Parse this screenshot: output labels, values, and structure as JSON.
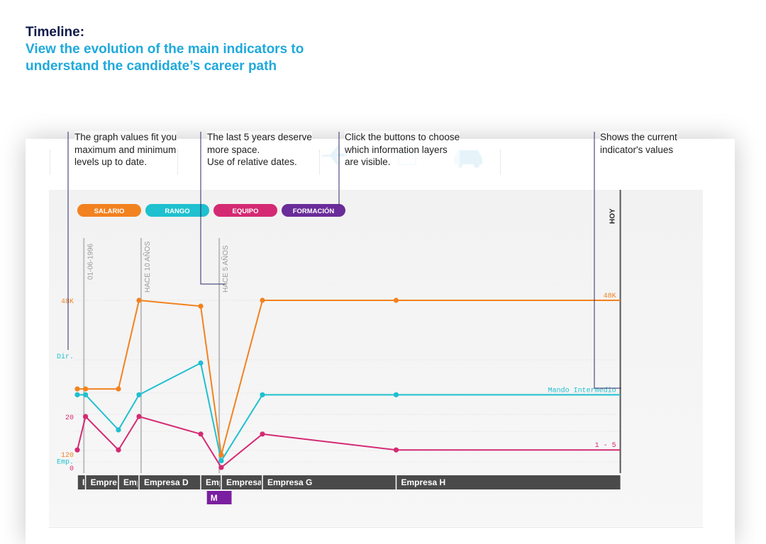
{
  "header": {
    "title": "Timeline:",
    "subtitle": "View the evolution of the main indicators to understand the candidate’s career path"
  },
  "callouts": [
    {
      "id": "values",
      "text": "The graph values fit you\nmaximum and minimum\nlevels up to date."
    },
    {
      "id": "space",
      "text": "The last 5 years deserve\nmore space.\nUse of relative dates."
    },
    {
      "id": "buttons",
      "text": "Click the buttons to choose\nwhich information layers\nare visible."
    },
    {
      "id": "current",
      "text": "Shows the current\nindicator's values"
    }
  ],
  "buttons": [
    {
      "label": "SALARIO",
      "color": "#f2821f"
    },
    {
      "label": "RANGO",
      "color": "#1fc0cf"
    },
    {
      "label": "EQUIPO",
      "color": "#d42a73"
    },
    {
      "label": "FORMACIÓN",
      "color": "#6a2c99"
    }
  ],
  "colors": {
    "salario": "#f2821f",
    "rango": "#1fc0cf",
    "equipo": "#d42a73",
    "formacion": "#7a1fa0",
    "company_bar": "#4a4a4a",
    "marker": "#bdbdbd",
    "grid": "#dddddd",
    "today_line": "#555555"
  },
  "chart_data": {
    "type": "line",
    "x_scale": "relative-time",
    "date_markers": [
      {
        "label": "01-06-1996",
        "x": 0.16
      },
      {
        "label": "HACE 10 AÑOS",
        "x": 1.55
      },
      {
        "label": "HACE 5 AÑOS",
        "x": 3.45
      }
    ],
    "today_label": "HOY",
    "x_end": 13.2,
    "y_labels": [
      {
        "text": "48K",
        "series": "salario",
        "level": 1.0
      },
      {
        "text": "Dir.",
        "series": "rango",
        "level": 0.67
      },
      {
        "text": "20",
        "series": "equipo",
        "level": 0.305
      },
      {
        "text": "120",
        "series": "salario",
        "level": 0.08
      },
      {
        "text": "Emp.",
        "series": "rango",
        "level": 0.04
      },
      {
        "text": "0",
        "series": "equipo",
        "level": 0.0
      }
    ],
    "series": [
      {
        "key": "salario",
        "points": [
          [
            0.0,
            0.47
          ],
          [
            0.2,
            0.47
          ],
          [
            1.0,
            0.47
          ],
          [
            1.5,
            1.0
          ],
          [
            3.0,
            0.965
          ],
          [
            3.5,
            0.075
          ],
          [
            4.5,
            1.0
          ],
          [
            7.75,
            1.0
          ]
        ],
        "end_x": 13.2,
        "end_label": "48K"
      },
      {
        "key": "rango",
        "points": [
          [
            0.0,
            0.435
          ],
          [
            0.2,
            0.435
          ],
          [
            1.0,
            0.225
          ],
          [
            1.5,
            0.435
          ],
          [
            3.0,
            0.625
          ],
          [
            3.5,
            0.04
          ],
          [
            4.5,
            0.435
          ],
          [
            7.75,
            0.435
          ]
        ],
        "end_x": 13.2,
        "end_label": "Mando Intermedio"
      },
      {
        "key": "equipo",
        "points": [
          [
            0.0,
            0.105
          ],
          [
            0.2,
            0.305
          ],
          [
            1.0,
            0.105
          ],
          [
            1.5,
            0.305
          ],
          [
            3.0,
            0.2
          ],
          [
            3.5,
            0.0
          ],
          [
            4.5,
            0.2
          ],
          [
            7.75,
            0.105
          ]
        ],
        "end_x": 13.2,
        "end_label": "1 - 5"
      }
    ],
    "companies": [
      {
        "label": "Empresa A",
        "start": 0.0,
        "end": 0.2
      },
      {
        "label": "Empresa B",
        "start": 0.2,
        "end": 1.0
      },
      {
        "label": "Empresa C",
        "start": 1.0,
        "end": 1.5
      },
      {
        "label": "Empresa D",
        "start": 1.5,
        "end": 3.0
      },
      {
        "label": "Empresa E",
        "start": 3.0,
        "end": 3.5
      },
      {
        "label": "Empresa F",
        "start": 3.5,
        "end": 4.5
      },
      {
        "label": "Empresa G",
        "start": 4.5,
        "end": 7.75
      },
      {
        "label": "Empresa H",
        "start": 7.75,
        "end": 13.2
      }
    ],
    "education": [
      {
        "label": "M",
        "start": 3.15,
        "end": 3.75
      }
    ]
  }
}
